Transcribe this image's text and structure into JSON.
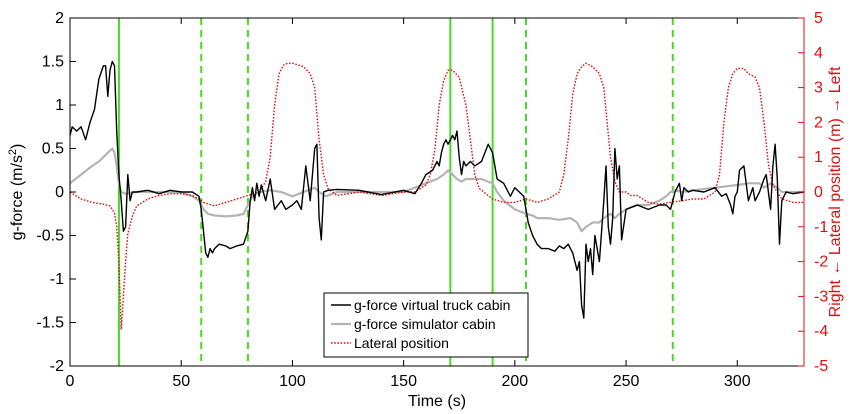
{
  "chart_data": {
    "type": "line",
    "title": "",
    "xlabel": "Time (s)",
    "ylabel_left": {
      "base": "g-force (m/s",
      "sup": "2",
      "close": ")"
    },
    "ylabel_right": "Right ← Lateral position (m) → Left",
    "xlim": [
      0,
      330
    ],
    "ylim_left": [
      -2,
      2
    ],
    "ylim_right": [
      -5,
      5
    ],
    "x_ticks": [
      0,
      50,
      100,
      150,
      200,
      250,
      300
    ],
    "y_left_ticks": [
      -2,
      -1.5,
      -1,
      -0.5,
      0,
      0.5,
      1,
      1.5,
      2
    ],
    "y_right_ticks": [
      -5,
      -4,
      -3,
      -2,
      -1,
      0,
      1,
      2,
      3,
      4,
      5
    ],
    "legend_position": "bottom-center",
    "colors": {
      "truck": "#000000",
      "simulator": "#b4b4b4",
      "lateral": "#dd1111",
      "event_lines": "#44dd22",
      "right_axis": "#dd1111"
    },
    "event_lines": [
      {
        "x": 22,
        "style": "solid"
      },
      {
        "x": 59,
        "style": "dashed"
      },
      {
        "x": 80,
        "style": "dashed"
      },
      {
        "x": 171,
        "style": "solid"
      },
      {
        "x": 190,
        "style": "solid"
      },
      {
        "x": 205,
        "style": "dashed"
      },
      {
        "x": 271,
        "style": "dashed"
      }
    ],
    "series": [
      {
        "name": "g-force virtual truck cabin",
        "axis": "left",
        "style": "solid",
        "x": [
          0,
          1,
          3,
          5,
          7,
          9,
          11,
          13,
          15,
          16,
          17,
          18,
          19,
          20,
          21,
          22,
          23,
          24,
          25,
          26,
          27,
          28,
          30,
          35,
          40,
          45,
          50,
          55,
          58,
          59,
          60,
          61,
          62,
          63,
          64,
          65,
          67,
          70,
          72,
          75,
          78,
          80,
          81,
          82,
          83,
          84,
          85,
          86,
          88,
          90,
          92,
          95,
          97,
          100,
          102,
          104,
          106,
          108,
          110,
          111,
          112,
          113,
          114,
          116,
          120,
          130,
          140,
          150,
          155,
          158,
          160,
          163,
          165,
          166,
          167,
          168,
          169,
          170,
          171,
          172,
          173,
          174,
          175,
          176,
          177,
          178,
          180,
          182,
          185,
          188,
          190,
          192,
          195,
          198,
          200,
          202,
          204,
          205,
          206,
          208,
          210,
          212,
          215,
          218,
          220,
          222,
          224,
          226,
          228,
          229,
          230,
          231,
          232,
          233,
          234,
          235,
          236,
          238,
          240,
          241,
          242,
          243,
          244,
          245,
          246,
          247,
          248,
          250,
          255,
          260,
          265,
          268,
          270,
          271,
          272,
          274,
          275,
          276,
          278,
          280,
          285,
          290,
          293,
          295,
          297,
          298,
          299,
          300,
          301,
          303,
          305,
          307,
          308,
          310,
          312,
          313,
          314,
          315,
          316,
          317,
          318,
          319,
          320,
          322,
          325,
          330
        ],
        "values": [
          0.65,
          0.75,
          0.7,
          0.75,
          0.6,
          0.8,
          0.95,
          1.3,
          1.45,
          1.45,
          1.1,
          1.4,
          1.5,
          1.45,
          0.7,
          0.2,
          -0.1,
          -0.45,
          -0.4,
          0.2,
          -0.1,
          0.0,
          0.0,
          0.02,
          -0.02,
          0.02,
          0.0,
          0.0,
          -0.05,
          -0.2,
          -0.45,
          -0.7,
          -0.75,
          -0.65,
          -0.7,
          -0.65,
          -0.6,
          -0.62,
          -0.65,
          -0.62,
          -0.6,
          -0.45,
          -0.1,
          0.05,
          -0.1,
          0.1,
          -0.05,
          0.08,
          -0.1,
          0.15,
          -0.2,
          -0.1,
          -0.2,
          -0.15,
          -0.1,
          -0.2,
          0.3,
          -0.1,
          0.5,
          0.55,
          -0.3,
          -0.55,
          0.0,
          0.02,
          0.03,
          0.02,
          -0.03,
          0.02,
          -0.02,
          0.1,
          0.2,
          0.25,
          0.35,
          0.3,
          0.45,
          0.55,
          0.6,
          0.55,
          0.6,
          0.65,
          0.6,
          0.7,
          0.4,
          0.2,
          0.35,
          0.3,
          0.35,
          0.3,
          0.35,
          0.55,
          0.45,
          0.15,
          0.1,
          -0.05,
          0.05,
          0.0,
          -0.05,
          -0.2,
          -0.35,
          -0.5,
          -0.6,
          -0.65,
          -0.65,
          -0.68,
          -0.62,
          -0.65,
          -0.6,
          -0.7,
          -0.9,
          -0.8,
          -1.3,
          -1.45,
          -0.6,
          -0.8,
          -0.65,
          -0.95,
          -0.5,
          -0.8,
          -0.1,
          0.3,
          -0.4,
          -0.6,
          -0.3,
          0.5,
          0.15,
          0.3,
          -0.55,
          -0.2,
          -0.15,
          -0.2,
          -0.15,
          -0.15,
          -0.2,
          -0.1,
          0.0,
          0.1,
          -0.1,
          0.05,
          0.0,
          0.02,
          0.0,
          0.05,
          -0.05,
          -0.02,
          -0.15,
          -0.25,
          -0.05,
          0.0,
          0.25,
          0.3,
          -0.1,
          0.05,
          -0.1,
          0.0,
          0.15,
          0.2,
          0.0,
          -0.2,
          0.3,
          0.55,
          0.15,
          -0.6,
          -0.1,
          0.0,
          -0.02,
          0.0
        ]
      },
      {
        "name": "g-force simulator cabin",
        "axis": "left",
        "style": "solid",
        "x": [
          0,
          5,
          10,
          13,
          15,
          17,
          19,
          20,
          21,
          22,
          23,
          25,
          30,
          40,
          50,
          55,
          58,
          60,
          62,
          65,
          70,
          75,
          78,
          80,
          82,
          85,
          90,
          95,
          100,
          105,
          110,
          112,
          115,
          120,
          130,
          140,
          150,
          155,
          160,
          165,
          168,
          170,
          172,
          174,
          176,
          178,
          180,
          185,
          188,
          190,
          192,
          195,
          200,
          205,
          208,
          210,
          215,
          220,
          225,
          228,
          230,
          232,
          235,
          238,
          240,
          243,
          245,
          247,
          250,
          255,
          260,
          265,
          268,
          270,
          272,
          275,
          280,
          290,
          300,
          305,
          310,
          312,
          315,
          318,
          320,
          325,
          330
        ],
        "values": [
          0.1,
          0.2,
          0.3,
          0.35,
          0.4,
          0.45,
          0.5,
          0.45,
          0.3,
          0.1,
          0.0,
          -0.02,
          0.0,
          0.0,
          0.0,
          -0.05,
          -0.1,
          -0.2,
          -0.25,
          -0.27,
          -0.28,
          -0.27,
          -0.25,
          -0.15,
          -0.05,
          0.0,
          0.02,
          0.0,
          -0.05,
          0.0,
          0.05,
          0.0,
          -0.05,
          0.0,
          0.0,
          0.0,
          0.0,
          0.05,
          0.1,
          0.15,
          0.2,
          0.25,
          0.2,
          0.15,
          0.12,
          0.15,
          0.15,
          0.15,
          0.12,
          0.1,
          0.0,
          -0.1,
          -0.2,
          -0.25,
          -0.27,
          -0.3,
          -0.3,
          -0.32,
          -0.3,
          -0.35,
          -0.45,
          -0.4,
          -0.35,
          -0.35,
          -0.3,
          -0.25,
          -0.3,
          -0.25,
          -0.2,
          -0.15,
          -0.15,
          -0.1,
          -0.05,
          0.0,
          0.02,
          0.0,
          0.02,
          0.05,
          0.08,
          0.1,
          0.1,
          0.05,
          0.1,
          0.05,
          0.0,
          0.0,
          0.0
        ]
      },
      {
        "name": "Lateral position",
        "axis": "right",
        "style": "dotted",
        "x": [
          0,
          5,
          10,
          15,
          18,
          20,
          21,
          22,
          23,
          24,
          25,
          26,
          28,
          30,
          35,
          40,
          45,
          50,
          55,
          58,
          60,
          65,
          70,
          75,
          80,
          85,
          88,
          90,
          92,
          94,
          96,
          98,
          100,
          105,
          108,
          110,
          112,
          114,
          116,
          118,
          120,
          130,
          140,
          150,
          155,
          160,
          162,
          164,
          166,
          168,
          170,
          172,
          175,
          178,
          180,
          182,
          184,
          186,
          188,
          190,
          195,
          200,
          205,
          210,
          215,
          220,
          222,
          224,
          226,
          228,
          230,
          232,
          235,
          238,
          240,
          243,
          245,
          247,
          250,
          252,
          255,
          260,
          265,
          270,
          275,
          280,
          285,
          290,
          292,
          294,
          296,
          298,
          300,
          303,
          305,
          308,
          310,
          312,
          314,
          316,
          318,
          320,
          325,
          330
        ],
        "values": [
          0.0,
          -0.2,
          -0.3,
          -0.35,
          -0.4,
          -0.6,
          -1.0,
          -2.0,
          -3.95,
          -3.0,
          -2.0,
          -1.2,
          -0.7,
          -0.4,
          -0.2,
          -0.1,
          -0.05,
          -0.05,
          -0.1,
          -0.2,
          -0.3,
          -0.4,
          -0.3,
          -0.2,
          -0.1,
          0.0,
          0.3,
          1.0,
          2.5,
          3.4,
          3.65,
          3.7,
          3.7,
          3.6,
          3.4,
          3.0,
          1.5,
          0.5,
          0.1,
          0.0,
          -0.1,
          0.0,
          -0.1,
          0.0,
          0.0,
          0.2,
          0.5,
          1.2,
          2.5,
          3.2,
          3.5,
          3.5,
          3.3,
          2.5,
          1.5,
          0.5,
          0.1,
          0.0,
          -0.1,
          -0.2,
          -0.3,
          -0.3,
          -0.2,
          -0.3,
          -0.2,
          0.0,
          0.5,
          1.5,
          2.8,
          3.4,
          3.6,
          3.7,
          3.6,
          3.4,
          3.0,
          1.0,
          0.3,
          0.0,
          0.0,
          -0.1,
          -0.1,
          -0.3,
          -0.35,
          -0.3,
          -0.25,
          -0.2,
          -0.2,
          0.0,
          0.5,
          2.0,
          3.0,
          3.4,
          3.55,
          3.55,
          3.4,
          3.3,
          3.0,
          2.0,
          0.8,
          0.2,
          0.0,
          -0.2,
          -0.3,
          -0.3
        ]
      }
    ]
  }
}
